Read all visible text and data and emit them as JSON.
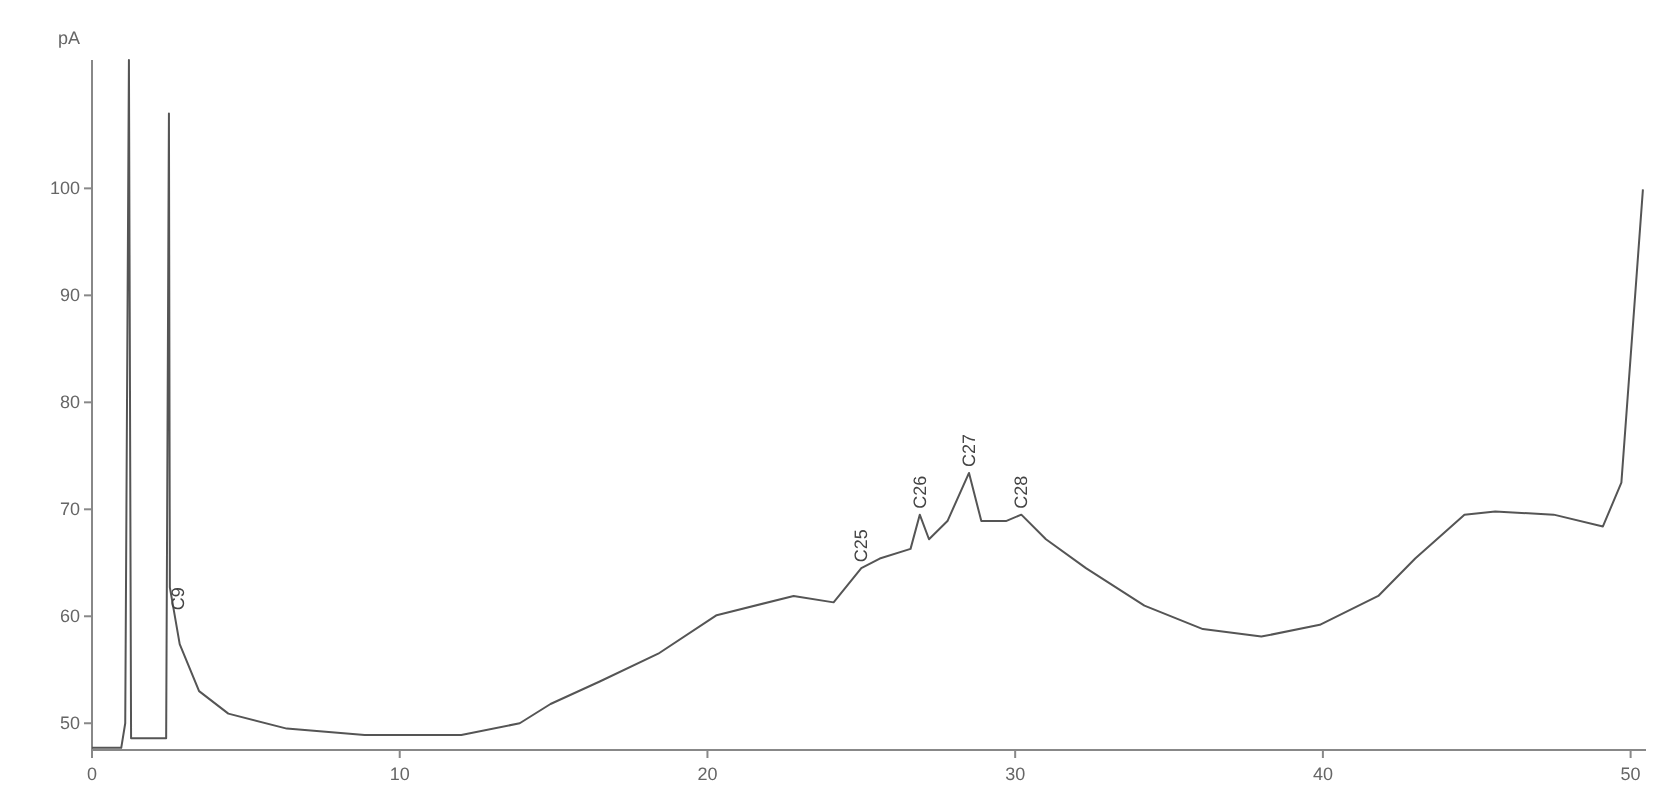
{
  "chart_data": {
    "type": "line",
    "ylabel": "pA",
    "x": [
      0,
      0.95,
      1.08,
      1.2,
      1.27,
      2.41,
      2.5,
      2.53,
      2.85,
      3.48,
      4.43,
      6.33,
      8.86,
      12.0,
      13.9,
      14.9,
      16.5,
      18.4,
      20.3,
      22.8,
      24.1,
      25.0,
      25.6,
      26.6,
      26.9,
      27.2,
      27.8,
      28.5,
      28.9,
      29.7,
      30.2,
      31.0,
      32.3,
      34.2,
      36.1,
      38.0,
      39.9,
      41.8,
      43.0,
      44.6,
      45.6,
      47.5,
      49.1,
      49.7,
      50.4
    ],
    "series": [
      {
        "color": "#555555",
        "values": [
          47.7,
          47.7,
          50,
          112,
          48.6,
          48.6,
          107,
          62.7,
          57.4,
          53,
          50.9,
          49.5,
          48.9,
          48.9,
          50,
          51.8,
          53.9,
          56.5,
          60.1,
          61.9,
          61.3,
          64.5,
          65.4,
          66.3,
          69.5,
          67.2,
          68.9,
          73.4,
          68.9,
          68.9,
          69.5,
          67.2,
          64.5,
          61,
          58.8,
          58.1,
          59.2,
          61.9,
          65.4,
          69.5,
          69.8,
          69.5,
          68.4,
          72.5,
          99.9
        ]
      }
    ],
    "xlim": [
      0,
      50.5
    ],
    "xticks": [
      0,
      10,
      20,
      30,
      40,
      50
    ],
    "ylim": [
      47.5,
      112
    ],
    "yticks": [
      50,
      60,
      70,
      80,
      90,
      100
    ],
    "grid": false,
    "marker": "none",
    "line_style": "solid",
    "annotations": [
      {
        "text": "C9",
        "x": 2.8,
        "y": 60
      },
      {
        "text": "C25",
        "x": 25.0,
        "y": 64.5
      },
      {
        "text": "C26",
        "x": 26.9,
        "y": 69.5
      },
      {
        "text": "C27",
        "x": 28.5,
        "y": 73.4
      },
      {
        "text": "C28",
        "x": 30.2,
        "y": 69.5
      }
    ]
  }
}
